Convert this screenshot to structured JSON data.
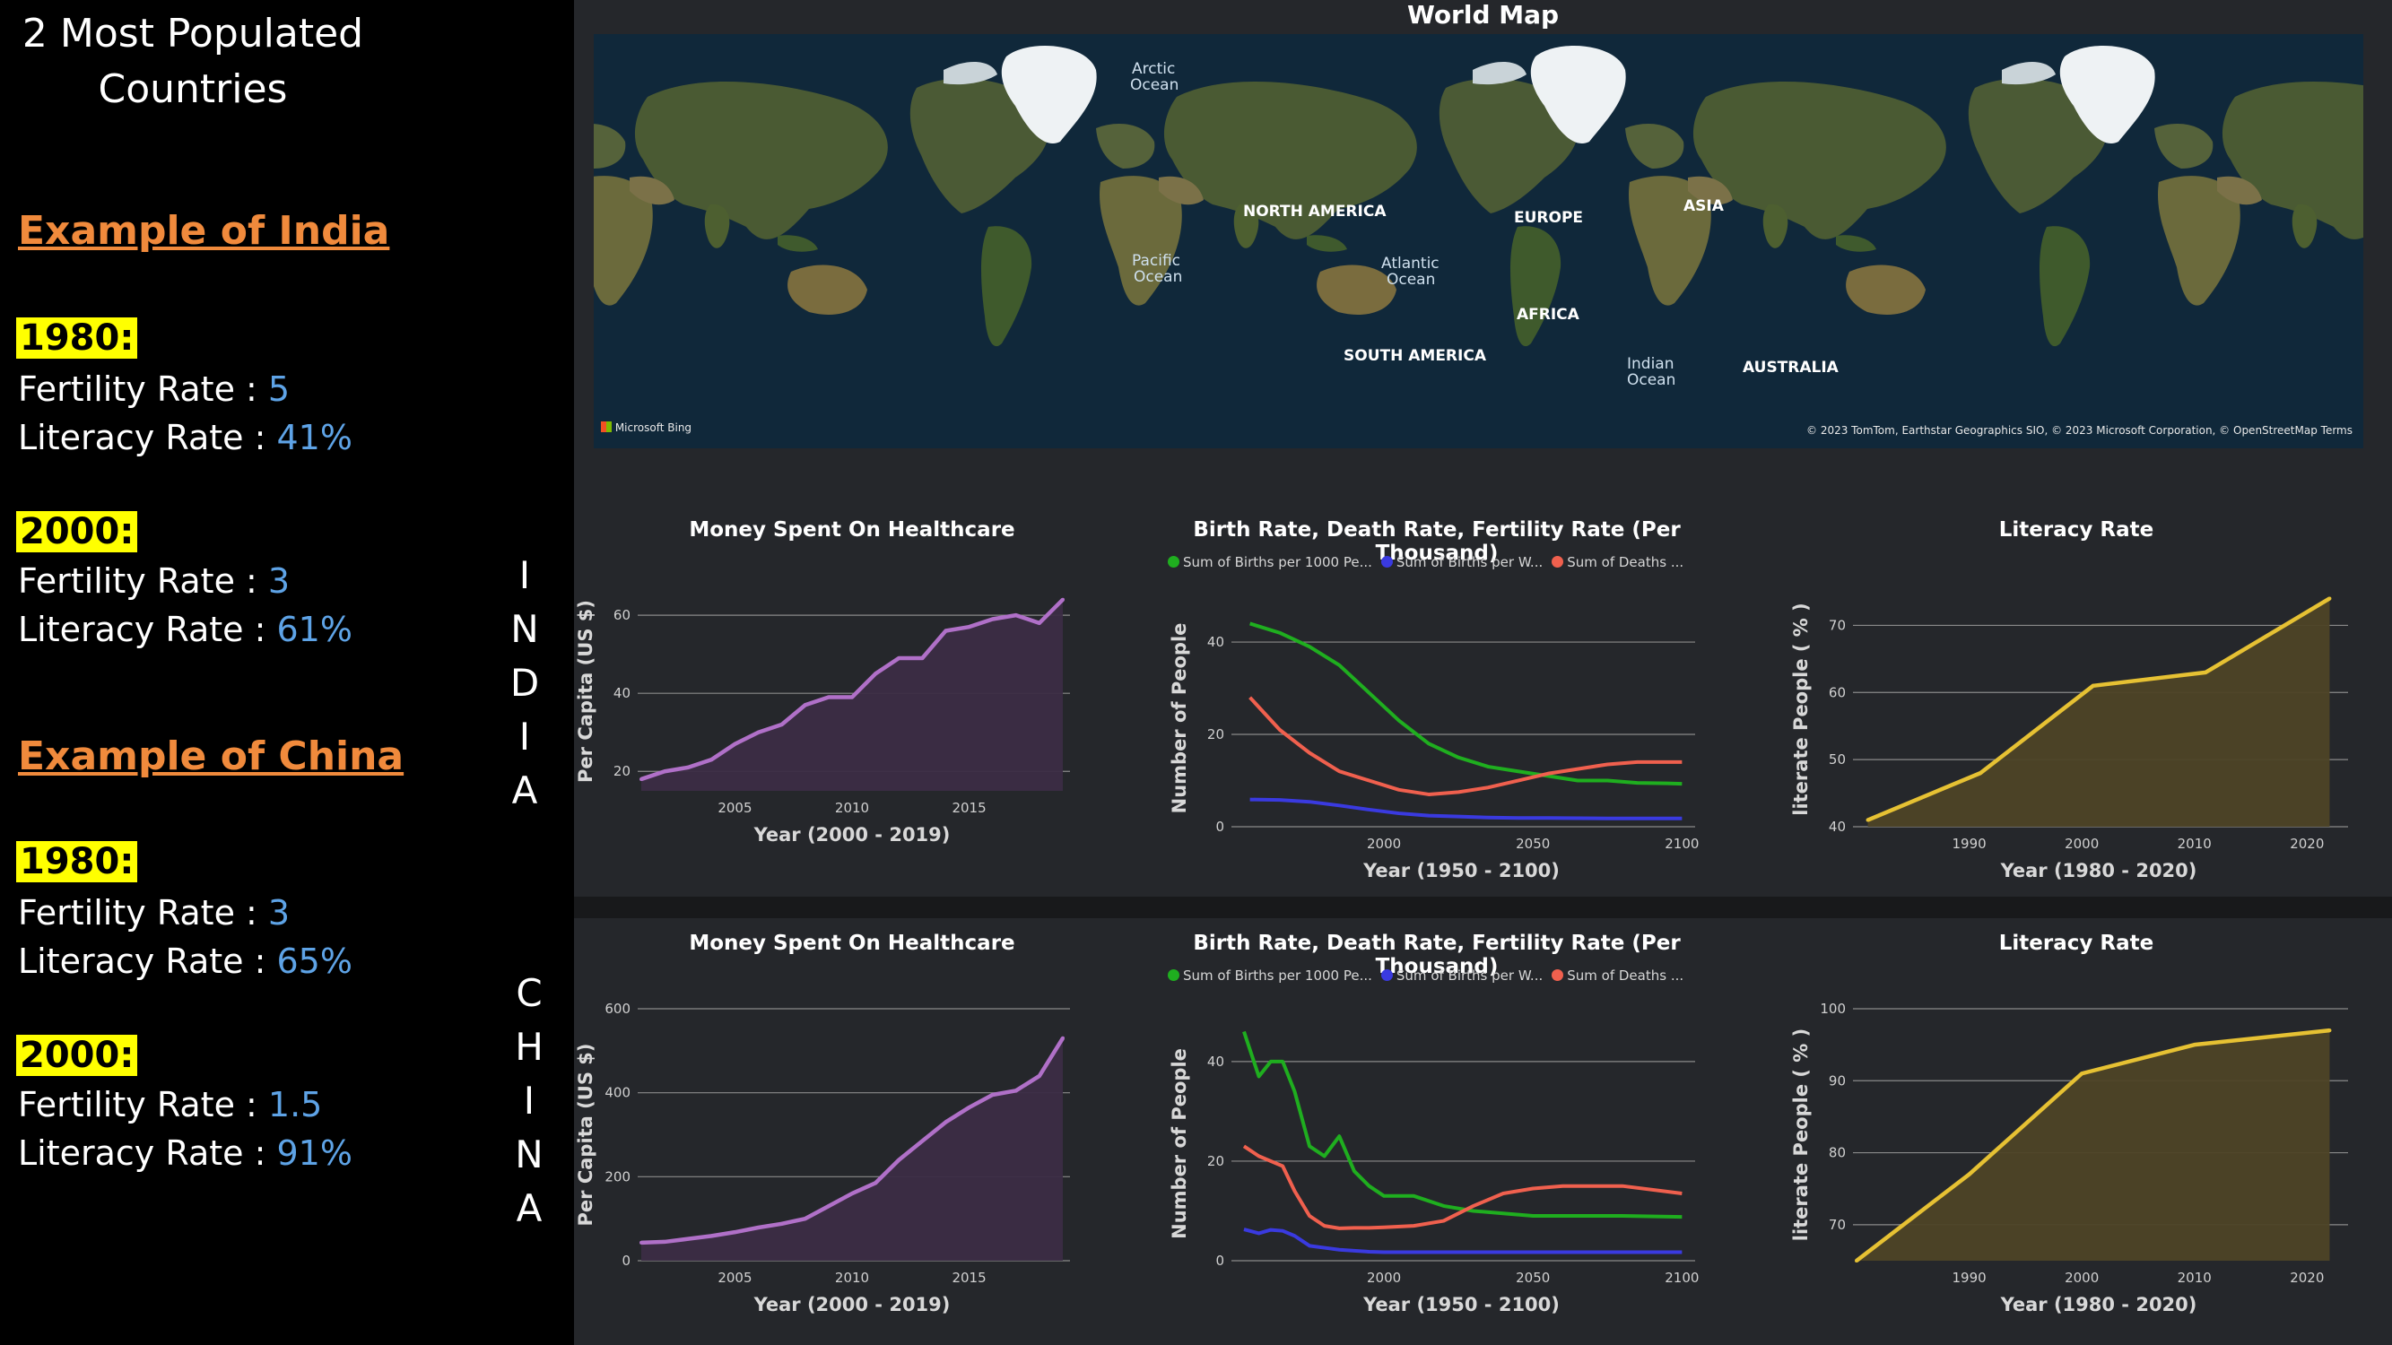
{
  "left_panel": {
    "title_line1": "2 Most Populated",
    "title_line2": "Countries",
    "india": {
      "heading": "Example of India",
      "y1980": {
        "label": "1980:",
        "fertility_label": "Fertility Rate : ",
        "fertility_value": "5",
        "literacy_label": "Literacy Rate : ",
        "literacy_value": "41%"
      },
      "y2000": {
        "label": "2000:",
        "fertility_label": "Fertility Rate : ",
        "fertility_value": "3",
        "literacy_label": "Literacy Rate : ",
        "literacy_value": "61%"
      }
    },
    "china": {
      "heading": "Example of China",
      "y1980": {
        "label": "1980:",
        "fertility_label": "Fertility Rate : ",
        "fertility_value": "3",
        "literacy_label": "Literacy Rate : ",
        "literacy_value": "65%"
      },
      "y2000": {
        "label": "2000:",
        "fertility_label": "Fertility Rate : ",
        "fertility_value": "1.5",
        "literacy_label": "Literacy Rate : ",
        "literacy_value": "91%"
      }
    },
    "india_vertical": [
      "I",
      "N",
      "D",
      "I",
      "A"
    ],
    "china_vertical": [
      "C",
      "H",
      "I",
      "N",
      "A"
    ]
  },
  "map": {
    "title": "World Map",
    "labels": {
      "arctic1": "Arctic",
      "arctic2": "Ocean",
      "pacific1": "Pacific",
      "pacific2": "Ocean",
      "atlantic1": "Atlantic",
      "atlantic2": "Ocean",
      "indian1": "Indian",
      "indian2": "Ocean",
      "north_america": "NORTH AMERICA",
      "south_america": "SOUTH AMERICA",
      "europe": "EUROPE",
      "asia": "ASIA",
      "africa": "AFRICA",
      "australia": "AUSTRALIA"
    },
    "logo": "Microsoft Bing",
    "attribution": "© 2023 TomTom, Earthstar Geographics SIO, © 2023 Microsoft Corporation, © OpenStreetMap  Terms"
  },
  "colors": {
    "health": "#b070c8",
    "health_fill": "#3b2c44",
    "births": "#1fae1f",
    "births_worker": "#3a3ae0",
    "deaths": "#f0604e",
    "literacy": "#e6c133",
    "literacy_fill": "#4d4326"
  },
  "chart_data": [
    {
      "id": "india-health",
      "type": "area",
      "title": "Money Spent On Healthcare",
      "xlabel": "Year (2000 - 2019)",
      "ylabel": "Per Capita (US $)",
      "x": [
        2001,
        2002,
        2003,
        2004,
        2005,
        2006,
        2007,
        2008,
        2009,
        2010,
        2011,
        2012,
        2013,
        2014,
        2015,
        2016,
        2017,
        2018,
        2019
      ],
      "values": [
        18,
        20,
        21,
        23,
        27,
        30,
        32,
        37,
        39,
        39,
        45,
        49,
        49,
        56,
        57,
        59,
        60,
        58,
        64
      ],
      "xlim": [
        2001,
        2019
      ],
      "ylim": [
        15,
        66
      ],
      "xticks": [
        2005,
        2010,
        2015
      ],
      "yticks": [
        20,
        40,
        60
      ]
    },
    {
      "id": "india-rates",
      "type": "line",
      "title": "Birth Rate, Death Rate, Fertility Rate (Per Thousand)",
      "legend": [
        "Sum of  Births per 1000 Pe...",
        "Sum of  Births per W...",
        "Sum of  Deaths ..."
      ],
      "xlabel": "Year (1950 - 2100)",
      "ylabel": "Number of People",
      "x": [
        1955,
        1965,
        1975,
        1985,
        1995,
        2005,
        2015,
        2025,
        2035,
        2045,
        2055,
        2065,
        2075,
        2085,
        2095,
        2100
      ],
      "series": [
        {
          "name": "Sum of  Births per 1000 Pe...",
          "values": [
            44,
            42,
            39,
            35,
            29,
            23,
            18,
            15,
            13,
            12,
            11,
            10,
            10,
            9.5,
            9.4,
            9.3
          ]
        },
        {
          "name": "Sum of  Births per W...",
          "values": [
            5.9,
            5.8,
            5.4,
            4.6,
            3.7,
            2.9,
            2.4,
            2.2,
            2.0,
            1.9,
            1.9,
            1.85,
            1.8,
            1.8,
            1.8,
            1.8
          ]
        },
        {
          "name": "Sum of  Deaths ...",
          "values": [
            28,
            21,
            16,
            12,
            10,
            8,
            7,
            7.5,
            8.5,
            10,
            11.5,
            12.5,
            13.5,
            14,
            14,
            14
          ]
        }
      ],
      "xlim": [
        1950,
        2102
      ],
      "ylim": [
        0,
        47
      ],
      "xticks": [
        2000,
        2050,
        2100
      ],
      "yticks": [
        0,
        20,
        40
      ]
    },
    {
      "id": "india-literacy",
      "type": "area",
      "title": "Literacy Rate",
      "xlabel": "Year (1980 - 2020)",
      "ylabel": "literate People ( % )",
      "x": [
        1981,
        1991,
        2001,
        2011,
        2022
      ],
      "values": [
        41,
        48,
        61,
        63,
        74
      ],
      "xlim": [
        1980,
        2023
      ],
      "ylim": [
        40,
        75
      ],
      "xticks": [
        1990,
        2000,
        2010,
        2020
      ],
      "yticks": [
        40,
        50,
        60,
        70
      ]
    },
    {
      "id": "china-health",
      "type": "area",
      "title": "Money Spent On Healthcare",
      "xlabel": "Year (2000 - 2019)",
      "ylabel": "Per Capita (US $)",
      "x": [
        2001,
        2002,
        2003,
        2004,
        2005,
        2006,
        2007,
        2008,
        2009,
        2010,
        2011,
        2012,
        2013,
        2014,
        2015,
        2016,
        2017,
        2018,
        2019
      ],
      "values": [
        43,
        45,
        52,
        59,
        68,
        79,
        88,
        100,
        130,
        160,
        185,
        240,
        285,
        330,
        365,
        395,
        405,
        440,
        530
      ],
      "xlim": [
        2001,
        2019
      ],
      "ylim": [
        0,
        600
      ],
      "xticks": [
        2005,
        2010,
        2015
      ],
      "yticks": [
        0,
        200,
        400,
        600
      ]
    },
    {
      "id": "china-rates",
      "type": "line",
      "title": "Birth Rate, Death Rate, Fertility Rate (Per Thousand)",
      "legend": [
        "Sum of  Births per 1000 Pe...",
        "Sum of  Births per W...",
        "Sum of  Deaths ..."
      ],
      "xlabel": "Year (1950 - 2100)",
      "ylabel": "Number of People",
      "x": [
        1953,
        1958,
        1962,
        1966,
        1970,
        1975,
        1980,
        1985,
        1990,
        1995,
        2000,
        2010,
        2020,
        2030,
        2040,
        2050,
        2060,
        2080,
        2100
      ],
      "series": [
        {
          "name": "Sum of  Births per 1000 Pe...",
          "values": [
            46,
            37,
            40,
            40,
            34,
            23,
            21,
            25,
            18,
            15,
            13,
            13,
            11,
            10,
            9.5,
            9,
            9,
            9,
            8.8
          ]
        },
        {
          "name": "Sum of  Births per W...",
          "values": [
            6.3,
            5.5,
            6.2,
            6.0,
            5.0,
            3.0,
            2.6,
            2.2,
            2.0,
            1.8,
            1.7,
            1.7,
            1.7,
            1.7,
            1.7,
            1.7,
            1.7,
            1.7,
            1.7
          ]
        },
        {
          "name": "Sum of  Deaths ...",
          "values": [
            23,
            21,
            20,
            19,
            14,
            9,
            7,
            6.5,
            6.6,
            6.6,
            6.7,
            7,
            8,
            11,
            13.5,
            14.5,
            15,
            15,
            13.5
          ]
        }
      ],
      "xlim": [
        1950,
        2102
      ],
      "ylim": [
        0,
        47
      ],
      "xticks": [
        2000,
        2050,
        2100
      ],
      "yticks": [
        0,
        20,
        40
      ]
    },
    {
      "id": "china-literacy",
      "type": "area",
      "title": "Literacy Rate",
      "xlabel": "Year (1980 - 2020)",
      "ylabel": "literate People ( % )",
      "x": [
        1980,
        1990,
        2000,
        2010,
        2022
      ],
      "values": [
        65,
        77,
        91,
        95,
        97
      ],
      "xlim": [
        1980,
        2023
      ],
      "ylim": [
        65,
        100
      ],
      "xticks": [
        1990,
        2000,
        2010,
        2020
      ],
      "yticks": [
        70,
        80,
        90,
        100
      ]
    }
  ]
}
